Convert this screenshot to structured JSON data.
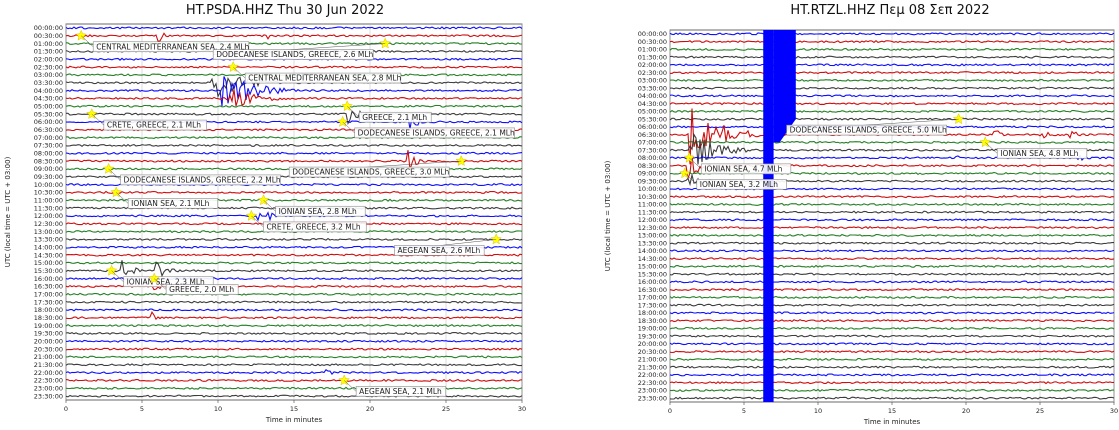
{
  "colors": {
    "trace_cycle": [
      "#0000ff",
      "#cc0000",
      "#1a7a1a",
      "#333333"
    ],
    "star": "#ffff00",
    "quake_line": "#cc0000"
  },
  "chart_data": [
    {
      "type": "line",
      "title": "HT.PSDA.HHZ     Thu 30 Jun 2022",
      "xlabel": "Time in minutes",
      "ylabel": "UTC (local time = UTC + 03:00)",
      "xlim": [
        0,
        30
      ],
      "xticks": [
        0,
        5,
        10,
        15,
        20,
        25,
        30
      ],
      "row_labels": [
        "00:00:00",
        "00:30:00",
        "01:00:00",
        "01:30:00",
        "02:00:00",
        "02:30:00",
        "03:00:00",
        "03:30:00",
        "04:00:00",
        "04:30:00",
        "05:00:00",
        "05:30:00",
        "06:00:00",
        "06:30:00",
        "07:00:00",
        "07:30:00",
        "08:00:00",
        "08:30:00",
        "09:00:00",
        "09:30:00",
        "10:00:00",
        "10:30:00",
        "11:00:00",
        "11:30:00",
        "12:00:00",
        "12:30:00",
        "13:00:00",
        "13:30:00",
        "14:00:00",
        "14:30:00",
        "15:00:00",
        "15:30:00",
        "16:00:00",
        "16:30:00",
        "17:00:00",
        "17:30:00",
        "18:00:00",
        "18:30:00",
        "19:00:00",
        "19:30:00",
        "20:00:00",
        "20:30:00",
        "21:00:00",
        "21:30:00",
        "22:00:00",
        "22:30:00",
        "23:00:00",
        "23:30:00"
      ],
      "events": [
        {
          "label": "CENTRAL MEDITERRANEAN SEA, 2.4 MLh",
          "x": 1.0,
          "row": 1
        },
        {
          "label": "DODECANESE ISLANDS, GREECE, 2.6 MLh",
          "x": 21.0,
          "row": 2
        },
        {
          "label": "CENTRAL MEDITERRANEAN SEA, 2.8 MLh",
          "x": 11.0,
          "row": 5
        },
        {
          "label": "GREECE, 2.1 MLh",
          "x": 18.5,
          "row": 10
        },
        {
          "label": "CRETE, GREECE, 2.1 MLh",
          "x": 1.7,
          "row": 11
        },
        {
          "label": "DODECANESE ISLANDS, GREECE, 2.1 MLh",
          "x": 18.2,
          "row": 12
        },
        {
          "label": "DODECANESE ISLANDS, GREECE, 3.0 MLh",
          "x": 26.0,
          "row": 17
        },
        {
          "label": "DODECANESE ISLANDS, GREECE, 2.2 MLh",
          "x": 2.8,
          "row": 18
        },
        {
          "label": "IONIAN SEA, 2.1 MLh",
          "x": 3.3,
          "row": 21
        },
        {
          "label": "IONIAN SEA, 2.8 MLh",
          "x": 13.0,
          "row": 22
        },
        {
          "label": "CRETE, GREECE, 3.2 MLh",
          "x": 12.2,
          "row": 24
        },
        {
          "label": "AEGEAN SEA, 2.6 MLh",
          "x": 28.3,
          "row": 27
        },
        {
          "label": "IONIAN SEA, 2.3 MLh",
          "x": 3.0,
          "row": 31
        },
        {
          "label": "GREECE, 2.0 MLh",
          "x": 5.8,
          "row": 32
        },
        {
          "label": "AEGEAN SEA, 2.1 MLh",
          "x": 18.3,
          "row": 45
        }
      ],
      "bursts": [
        {
          "row": 1,
          "x": 6.0,
          "amp": 9,
          "dur": 0.3
        },
        {
          "row": 1,
          "x": 13.2,
          "amp": 7,
          "dur": 0.3
        },
        {
          "row": 7,
          "x": 9.5,
          "amp": 20,
          "dur": 1.5
        },
        {
          "row": 8,
          "x": 10.2,
          "amp": 22,
          "dur": 1.6
        },
        {
          "row": 9,
          "x": 10.6,
          "amp": 12,
          "dur": 1.4
        },
        {
          "row": 11,
          "x": 18.5,
          "amp": 10,
          "dur": 0.8
        },
        {
          "row": 12,
          "x": 22.5,
          "amp": 12,
          "dur": 0.4
        },
        {
          "row": 17,
          "x": 22.5,
          "amp": 12,
          "dur": 0.4
        },
        {
          "row": 24,
          "x": 12.5,
          "amp": 10,
          "dur": 0.8
        },
        {
          "row": 31,
          "x": 3.6,
          "amp": 12,
          "dur": 0.6
        },
        {
          "row": 31,
          "x": 5.9,
          "amp": 10,
          "dur": 0.6
        },
        {
          "row": 33,
          "x": 5.7,
          "amp": 12,
          "dur": 0.3
        },
        {
          "row": 37,
          "x": 5.6,
          "amp": 8,
          "dur": 0.3
        },
        {
          "row": 44,
          "x": 17.0,
          "amp": 6,
          "dur": 0.5
        }
      ]
    },
    {
      "type": "line",
      "title": "HT.RTZL.HHZ     Πεμ 08 Σεπ 2022",
      "xlabel": "Time in minutes",
      "ylabel": "UTC (local time = UTC + 03:00)",
      "xlim": [
        0,
        30
      ],
      "xticks": [
        0,
        5,
        10,
        15,
        20,
        25,
        30
      ],
      "row_labels": [
        "00:00:00",
        "00:30:00",
        "01:00:00",
        "01:30:00",
        "02:00:00",
        "02:30:00",
        "03:00:00",
        "03:30:00",
        "04:00:00",
        "04:30:00",
        "05:00:00",
        "05:30:00",
        "06:00:00",
        "06:30:00",
        "07:00:00",
        "07:30:00",
        "08:00:00",
        "08:30:00",
        "09:00:00",
        "09:30:00",
        "10:00:00",
        "10:30:00",
        "11:00:00",
        "11:30:00",
        "12:00:00",
        "12:30:00",
        "13:00:00",
        "13:30:00",
        "14:00:00",
        "14:30:00",
        "15:00:00",
        "15:30:00",
        "16:00:00",
        "16:30:00",
        "17:00:00",
        "17:30:00",
        "18:00:00",
        "18:30:00",
        "19:00:00",
        "19:30:00",
        "20:00:00",
        "20:30:00",
        "21:00:00",
        "21:30:00",
        "22:00:00",
        "22:30:00",
        "23:00:00",
        "23:30:00"
      ],
      "events": [
        {
          "label": "DODECANESE ISLANDS, GREECE, 5.0 MLh",
          "x": 19.5,
          "row": 11
        },
        {
          "label": "IONIAN SEA, 4.8 MLh",
          "x": 21.3,
          "row": 14
        },
        {
          "label": "IONIAN SEA, 4.7 MLh",
          "x": 1.3,
          "row": 16
        },
        {
          "label": "IONIAN SEA, 3.2 MLh",
          "x": 1.0,
          "row": 18
        }
      ],
      "bursts": [
        {
          "row": 13,
          "x": 1.3,
          "amp": 32,
          "dur": 1.6
        },
        {
          "row": 15,
          "x": 1.3,
          "amp": 22,
          "dur": 1.3
        },
        {
          "row": 17,
          "x": 1.2,
          "amp": 14,
          "dur": 1.0
        },
        {
          "row": 19,
          "x": 1.1,
          "amp": 10,
          "dur": 1.0
        },
        {
          "row": 13,
          "x": 21.8,
          "amp": 8,
          "dur": 0.6
        },
        {
          "row": 13,
          "x": 25.0,
          "amp": 6,
          "dur": 0.5
        },
        {
          "row": 13,
          "x": 27.0,
          "amp": 6,
          "dur": 0.5
        },
        {
          "row": 16,
          "x": 19.3,
          "amp": 6,
          "dur": 0.4
        },
        {
          "row": 16,
          "x": 27.5,
          "amp": 6,
          "dur": 0.4
        }
      ],
      "saturated_band": {
        "x_from": 6.3,
        "x_to": 7.0,
        "row_from": 0,
        "row_to": 47
      },
      "saturated_tail": {
        "x_from": 7.0,
        "x_to": 8.5,
        "row_from": 0,
        "row_to": 14
      }
    }
  ]
}
